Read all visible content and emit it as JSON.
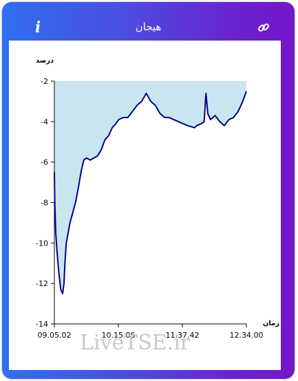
{
  "header": {
    "title": "هیجان",
    "info_icon": "info-icon",
    "link_icon": "link-icon"
  },
  "watermark": "LiveTSE.ir",
  "colors": {
    "line": "#00008b",
    "fill": "#c9e6f0",
    "frame_start": "#2f6ff0",
    "frame_end": "#7317c8"
  },
  "chart_data": {
    "type": "area",
    "title": "",
    "ylabel": "درصد",
    "xlabel": "زمان",
    "ylim": [
      -14,
      -2
    ],
    "yticks": [
      -2,
      -4,
      -6,
      -8,
      -10,
      -12,
      -14
    ],
    "xtick_labels": [
      "09.05.02",
      "10.15.06",
      "11.37.42",
      "12.34.00"
    ],
    "x_range": [
      "09.05.02",
      "12.34.00"
    ],
    "fill_to": "top",
    "grid": false,
    "x": [
      "09.05.02",
      "09.05.30",
      "09.06.30",
      "09.08.00",
      "09.10.00",
      "09.12.00",
      "09.14.00",
      "09.15.30",
      "09.16.30",
      "09.18.00",
      "09.20.00",
      "09.22.00",
      "09.25.00",
      "09.28.00",
      "09.31.00",
      "09.34.00",
      "09.37.00",
      "09.40.00",
      "09.44.00",
      "09.48.00",
      "09.52.00",
      "09.56.00",
      "10.00.00",
      "10.04.00",
      "10.08.00",
      "10.12.00",
      "10.15.06",
      "10.20.00",
      "10.25.00",
      "10.30.00",
      "10.35.00",
      "10.40.00",
      "10.45.00",
      "10.50.00",
      "10.55.00",
      "11.00.00",
      "11.05.00",
      "11.10.00",
      "11.15.00",
      "11.20.00",
      "11.25.00",
      "11.30.00",
      "11.37.42",
      "11.40.00",
      "11.45.00",
      "11.48.00",
      "11.50.00",
      "11.52.00",
      "11.55.00",
      "12.00.00",
      "12.05.00",
      "12.10.00",
      "12.15.00",
      "12.20.00",
      "12.25.00",
      "12.30.00",
      "12.34.00"
    ],
    "values": [
      -6.5,
      -8.0,
      -9.5,
      -10.5,
      -11.5,
      -12.3,
      -12.5,
      -12.0,
      -11.0,
      -10.0,
      -9.5,
      -9.0,
      -8.5,
      -8.0,
      -7.3,
      -6.5,
      -5.9,
      -5.8,
      -5.9,
      -5.8,
      -5.7,
      -5.4,
      -4.9,
      -4.7,
      -4.3,
      -4.1,
      -3.9,
      -3.8,
      -3.8,
      -3.5,
      -3.2,
      -3.0,
      -2.6,
      -3.0,
      -3.2,
      -3.6,
      -3.8,
      -3.8,
      -3.9,
      -4.0,
      -4.1,
      -4.2,
      -4.3,
      -4.2,
      -4.1,
      -4.0,
      -2.6,
      -3.6,
      -3.9,
      -3.7,
      -4.0,
      -4.2,
      -3.9,
      -3.8,
      -3.5,
      -3.0,
      -2.5
    ],
    "series": [
      {
        "values_ref": "values"
      }
    ]
  }
}
